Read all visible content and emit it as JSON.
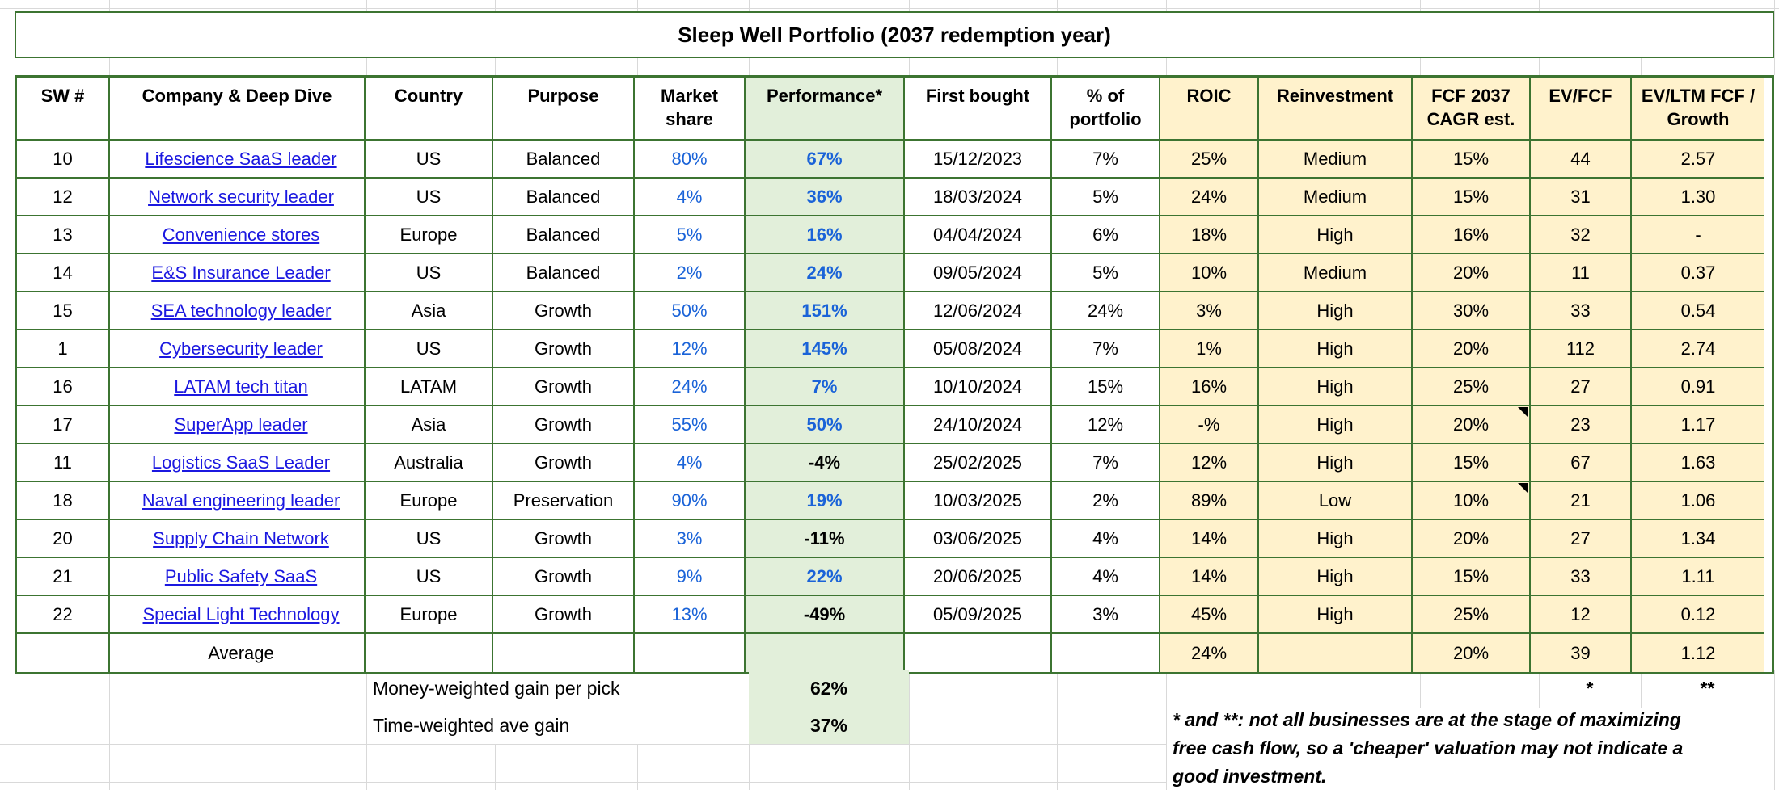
{
  "title": "Sleep Well Portfolio (2037 redemption year)",
  "colors": {
    "border_green": "#3c7431",
    "light_green": "#e2efda",
    "light_yellow": "#fff2cc",
    "link_blue": "#1b18e0",
    "value_blue": "#1a63d8",
    "grid_gray": "#d9d9d9"
  },
  "table": {
    "col_labels": [
      "SW #",
      "Company & Deep Dive",
      "Country",
      "Purpose",
      "Market share",
      "Performance*",
      "First bought",
      "% of portfolio",
      "ROIC",
      "Reinvestment",
      "FCF 2037 CAGR est.",
      "EV/FCF",
      "EV/LTM FCF / Growth"
    ],
    "rows": [
      {
        "sw": "10",
        "company": "Lifescience SaaS leader",
        "country": "US",
        "purpose": "Balanced",
        "market_share": "80%",
        "performance": "67%",
        "first_bought": "15/12/2023",
        "pct_portfolio": "7%",
        "roic": "25%",
        "reinvestment": "Medium",
        "fcf_cagr": "15%",
        "fcf_note": false,
        "ev_fcf": "44",
        "ev_ltm": "2.57"
      },
      {
        "sw": "12",
        "company": "Network security leader",
        "country": "US",
        "purpose": "Balanced",
        "market_share": "4%",
        "performance": "36%",
        "first_bought": "18/03/2024",
        "pct_portfolio": "5%",
        "roic": "24%",
        "reinvestment": "Medium",
        "fcf_cagr": "15%",
        "fcf_note": false,
        "ev_fcf": "31",
        "ev_ltm": "1.30"
      },
      {
        "sw": "13",
        "company": "Convenience stores",
        "country": "Europe",
        "purpose": "Balanced",
        "market_share": "5%",
        "performance": "16%",
        "first_bought": "04/04/2024",
        "pct_portfolio": "6%",
        "roic": "18%",
        "reinvestment": "High",
        "fcf_cagr": "16%",
        "fcf_note": false,
        "ev_fcf": "32",
        "ev_ltm": "-"
      },
      {
        "sw": "14",
        "company": "E&S Insurance Leader",
        "country": "US",
        "purpose": "Balanced",
        "market_share": "2%",
        "performance": "24%",
        "first_bought": "09/05/2024",
        "pct_portfolio": "5%",
        "roic": "10%",
        "reinvestment": "Medium",
        "fcf_cagr": "20%",
        "fcf_note": false,
        "ev_fcf": "11",
        "ev_ltm": "0.37"
      },
      {
        "sw": "15",
        "company": "SEA technology leader",
        "country": "Asia",
        "purpose": "Growth",
        "market_share": "50%",
        "performance": "151%",
        "first_bought": "12/06/2024",
        "pct_portfolio": "24%",
        "roic": "3%",
        "reinvestment": "High",
        "fcf_cagr": "30%",
        "fcf_note": false,
        "ev_fcf": "33",
        "ev_ltm": "0.54"
      },
      {
        "sw": "1",
        "company": "Cybersecurity leader",
        "country": "US",
        "purpose": "Growth",
        "market_share": "12%",
        "performance": "145%",
        "first_bought": "05/08/2024",
        "pct_portfolio": "7%",
        "roic": "1%",
        "reinvestment": "High",
        "fcf_cagr": "20%",
        "fcf_note": false,
        "ev_fcf": "112",
        "ev_ltm": "2.74"
      },
      {
        "sw": "16",
        "company": "LATAM tech titan",
        "country": "LATAM",
        "purpose": "Growth",
        "market_share": "24%",
        "performance": "7%",
        "first_bought": "10/10/2024",
        "pct_portfolio": "15%",
        "roic": "16%",
        "reinvestment": "High",
        "fcf_cagr": "25%",
        "fcf_note": false,
        "ev_fcf": "27",
        "ev_ltm": "0.91"
      },
      {
        "sw": "17",
        "company": "SuperApp leader",
        "country": "Asia",
        "purpose": "Growth",
        "market_share": "55%",
        "performance": "50%",
        "first_bought": "24/10/2024",
        "pct_portfolio": "12%",
        "roic": "-%",
        "reinvestment": "High",
        "fcf_cagr": "20%",
        "fcf_note": true,
        "ev_fcf": "23",
        "ev_ltm": "1.17"
      },
      {
        "sw": "11",
        "company": "Logistics SaaS Leader",
        "country": "Australia",
        "purpose": "Growth",
        "market_share": "4%",
        "performance": "-4%",
        "first_bought": "25/02/2025",
        "pct_portfolio": "7%",
        "roic": "12%",
        "reinvestment": "High",
        "fcf_cagr": "15%",
        "fcf_note": false,
        "ev_fcf": "67",
        "ev_ltm": "1.63"
      },
      {
        "sw": "18",
        "company": "Naval engineering leader",
        "country": "Europe",
        "purpose": "Preservation",
        "market_share": "90%",
        "performance": "19%",
        "first_bought": "10/03/2025",
        "pct_portfolio": "2%",
        "roic": "89%",
        "reinvestment": "Low",
        "fcf_cagr": "10%",
        "fcf_note": true,
        "ev_fcf": "21",
        "ev_ltm": "1.06"
      },
      {
        "sw": "20",
        "company": "Supply Chain Network",
        "country": "US",
        "purpose": "Growth",
        "market_share": "3%",
        "performance": "-11%",
        "first_bought": "03/06/2025",
        "pct_portfolio": "4%",
        "roic": "14%",
        "reinvestment": "High",
        "fcf_cagr": "20%",
        "fcf_note": false,
        "ev_fcf": "27",
        "ev_ltm": "1.34"
      },
      {
        "sw": "21",
        "company": "Public Safety SaaS",
        "country": "US",
        "purpose": "Growth",
        "market_share": "9%",
        "performance": "22%",
        "first_bought": "20/06/2025",
        "pct_portfolio": "4%",
        "roic": "14%",
        "reinvestment": "High",
        "fcf_cagr": "15%",
        "fcf_note": false,
        "ev_fcf": "33",
        "ev_ltm": "1.11"
      },
      {
        "sw": "22",
        "company": "Special Light Technology",
        "country": "Europe",
        "purpose": "Growth",
        "market_share": "13%",
        "performance": "-49%",
        "first_bought": "05/09/2025",
        "pct_portfolio": "3%",
        "roic": "45%",
        "reinvestment": "High",
        "fcf_cagr": "25%",
        "fcf_note": false,
        "ev_fcf": "12",
        "ev_ltm": "0.12"
      }
    ],
    "average": {
      "label": "Average",
      "roic": "24%",
      "fcf_cagr": "20%",
      "ev_fcf": "39",
      "ev_ltm": "1.12"
    }
  },
  "summary": {
    "money_weighted_label": "Money-weighted gain per pick",
    "money_weighted_value": "62%",
    "time_weighted_label": "Time-weighted ave gain",
    "time_weighted_value": "37%",
    "ev_fcf_footmark": "*",
    "ev_ltm_footmark": "**"
  },
  "footnote": {
    "line1": "* and **: not all businesses are at the stage of maximizing",
    "line2": "free cash flow, so a 'cheaper' valuation may not indicate a",
    "line3": "good investment."
  }
}
